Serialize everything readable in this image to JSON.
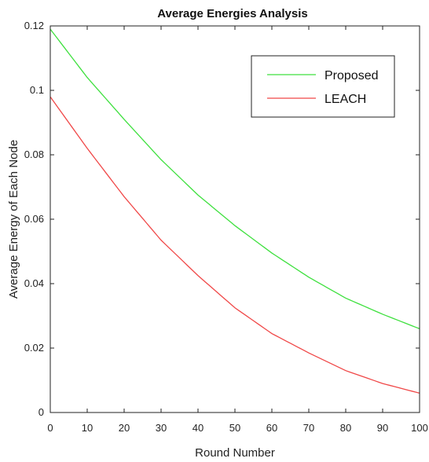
{
  "chart_data": {
    "type": "line",
    "title": "Average Energies Analysis",
    "xlabel": "Round Number",
    "ylabel": "Average Energy of Each Node",
    "xlim": [
      0,
      100
    ],
    "ylim": [
      0,
      0.12
    ],
    "xticks": [
      0,
      10,
      20,
      30,
      40,
      50,
      60,
      70,
      80,
      90,
      100
    ],
    "yticks": [
      0,
      0.02,
      0.04,
      0.06,
      0.08,
      0.1,
      0.12
    ],
    "ytick_labels": [
      "0",
      "0.02",
      "0.04",
      "0.06",
      "0.08",
      "0.1",
      "0.12"
    ],
    "grid": false,
    "legend_position": "top-right",
    "x": [
      0,
      10,
      20,
      30,
      40,
      50,
      60,
      70,
      80,
      90,
      100
    ],
    "series": [
      {
        "name": "Proposed",
        "color": "#3ee03e",
        "values": [
          0.119,
          0.104,
          0.091,
          0.0785,
          0.0675,
          0.058,
          0.0495,
          0.042,
          0.0355,
          0.0305,
          0.026
        ]
      },
      {
        "name": "LEACH",
        "color": "#f04848",
        "values": [
          0.098,
          0.082,
          0.067,
          0.0535,
          0.0425,
          0.0325,
          0.0245,
          0.0185,
          0.013,
          0.009,
          0.006
        ]
      }
    ]
  }
}
